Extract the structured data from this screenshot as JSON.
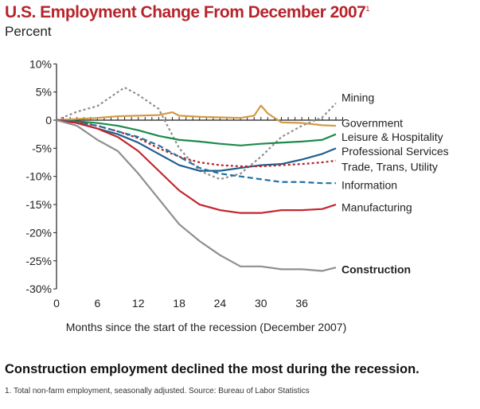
{
  "chart_data": {
    "type": "line",
    "title": "U.S. Employment Change From December 2007",
    "title_footnote_mark": "1",
    "ylabel": "Percent",
    "xlabel": "Months since the start of the recession (December 2007)",
    "ylim": [
      -30,
      10
    ],
    "xlim": [
      0,
      42
    ],
    "yticks": [
      "10%",
      "5%",
      "0",
      "-5%",
      "-10%",
      "-15%",
      "-20%",
      "-25%",
      "-30%"
    ],
    "ytick_values": [
      10,
      5,
      0,
      -5,
      -10,
      -15,
      -20,
      -25,
      -30
    ],
    "xticks": [
      0,
      6,
      12,
      18,
      24,
      30,
      36
    ],
    "x": [
      0,
      3,
      6,
      9,
      12,
      15,
      18,
      21,
      24,
      27,
      30,
      33,
      36,
      39,
      41
    ],
    "series": [
      {
        "name": "Mining",
        "color": "#8f8f8f",
        "style": "dotted",
        "bold": false,
        "x": [
          0,
          3,
          6,
          9,
          10,
          12,
          15,
          18,
          21,
          24,
          27,
          30,
          33,
          36,
          39,
          41
        ],
        "values": [
          0,
          1.5,
          2.5,
          5,
          5.8,
          4.5,
          2,
          -5,
          -9,
          -10.5,
          -9.5,
          -6.5,
          -3,
          -1,
          0.5,
          3
        ]
      },
      {
        "name": "Government",
        "color": "#d39a45",
        "style": "solid",
        "bold": false,
        "x": [
          0,
          3,
          6,
          9,
          12,
          15,
          17,
          18,
          21,
          24,
          27,
          29,
          30,
          31,
          33,
          36,
          39,
          41
        ],
        "values": [
          0,
          0.2,
          0.4,
          0.7,
          0.8,
          0.9,
          1.4,
          0.8,
          0.6,
          0.5,
          0.4,
          0.8,
          2.6,
          1.2,
          -0.4,
          -0.5,
          -0.9,
          -1
        ]
      },
      {
        "name": "Leisure & Hospitality",
        "color": "#1c8a4c",
        "style": "solid",
        "bold": false,
        "values": [
          0,
          -0.2,
          -0.5,
          -1,
          -1.8,
          -2.8,
          -3.5,
          -3.8,
          -4.2,
          -4.5,
          -4.2,
          -4,
          -3.8,
          -3.5,
          -2.5
        ]
      },
      {
        "name": "Professional Services",
        "color": "#1f5f8e",
        "style": "solid",
        "bold": false,
        "values": [
          0,
          -0.5,
          -1.5,
          -2.5,
          -4,
          -6,
          -8,
          -9,
          -9,
          -8.5,
          -8,
          -7.8,
          -7,
          -6,
          -5
        ]
      },
      {
        "name": "Trade, Trans, Utility",
        "color": "#b8242c",
        "style": "dotted",
        "bold": false,
        "values": [
          0,
          -0.3,
          -1,
          -2,
          -3.2,
          -5,
          -6.5,
          -7.5,
          -8,
          -8.2,
          -8.2,
          -8,
          -7.8,
          -7.5,
          -7.2
        ]
      },
      {
        "name": "Information",
        "color": "#2270a3",
        "style": "dashed",
        "bold": false,
        "values": [
          0,
          -0.3,
          -1,
          -2,
          -3,
          -4.5,
          -6.5,
          -8.5,
          -9.5,
          -10,
          -10.5,
          -11,
          -11,
          -11.2,
          -11.2
        ]
      },
      {
        "name": "Manufacturing",
        "color": "#c1272d",
        "style": "solid",
        "bold": false,
        "values": [
          0,
          -0.5,
          -1.5,
          -3,
          -5.5,
          -9,
          -12.5,
          -15,
          -16,
          -16.5,
          -16.5,
          -16,
          -16,
          -15.8,
          -15
        ]
      },
      {
        "name": "Construction",
        "color": "#8f8f8f",
        "style": "solid",
        "bold": true,
        "values": [
          0,
          -1,
          -3.5,
          -5.5,
          -9.5,
          -14,
          -18.5,
          -21.5,
          -24,
          -26,
          -26,
          -26.5,
          -26.5,
          -26.8,
          -26.2
        ]
      }
    ],
    "label_positions": [
      4,
      -0.5,
      -3,
      -5.5,
      -8.3,
      -11.5,
      -15.5,
      -26.5
    ],
    "grid": false,
    "legend": "right-inline"
  },
  "caption": "Construction employment declined the most during the recession.",
  "footnote": "1. Total non-farm employment, seasonally adjusted. Source: Bureau of Labor Statistics"
}
